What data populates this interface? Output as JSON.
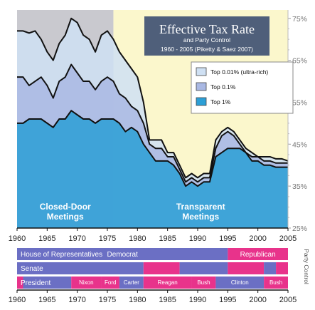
{
  "chart_data": {
    "type": "area",
    "title": "Effective Tax Rate",
    "subtitle": "and Party Control",
    "source": "1960 - 2005 (Piketty & Saez 2007)",
    "x": [
      1960,
      1961,
      1962,
      1963,
      1964,
      1965,
      1966,
      1967,
      1968,
      1969,
      1970,
      1971,
      1972,
      1973,
      1974,
      1975,
      1976,
      1977,
      1978,
      1979,
      1980,
      1981,
      1982,
      1983,
      1984,
      1985,
      1986,
      1987,
      1988,
      1989,
      1990,
      1991,
      1992,
      1993,
      1994,
      1995,
      1996,
      1997,
      1998,
      1999,
      2000,
      2001,
      2002,
      2003,
      2004,
      2005
    ],
    "series": [
      {
        "name": "Top 0.01% (ultra-rich)",
        "color": "#cfe0f3",
        "values": [
          72,
          72,
          71.5,
          72,
          70,
          67,
          65,
          69,
          71,
          75,
          74,
          71,
          70,
          67,
          71,
          72,
          70,
          67,
          65,
          63,
          61,
          55,
          46,
          46,
          46,
          43,
          43,
          40,
          37,
          38,
          37,
          38,
          38,
          46,
          48,
          49,
          48,
          46,
          44,
          43,
          42,
          42,
          42,
          41.5,
          41.5,
          41
        ]
      },
      {
        "name": "Top 0.1%",
        "color": "#a9b8e3",
        "values": [
          61,
          61,
          59,
          60,
          61,
          59,
          56,
          60,
          61,
          64,
          62,
          60,
          60,
          58,
          60,
          61,
          60,
          57,
          56,
          54,
          53,
          50,
          45,
          44,
          44,
          42,
          42,
          39,
          36,
          37,
          36,
          37,
          37,
          44,
          47,
          48,
          47,
          45,
          43,
          42,
          42,
          41,
          41,
          40.5,
          40.5,
          40.5
        ]
      },
      {
        "name": "Top 1%",
        "color": "#2c9fd6",
        "values": [
          50,
          50,
          51,
          51,
          51,
          50,
          49,
          51,
          51,
          53,
          52,
          51,
          51,
          50,
          51,
          51,
          51,
          50,
          48,
          49,
          48,
          45,
          43,
          41,
          41,
          41,
          40,
          38,
          35,
          36,
          35,
          36,
          36,
          42,
          43,
          44,
          44,
          44,
          43,
          41,
          41,
          40,
          40,
          39.5,
          39.5,
          39.5
        ]
      }
    ],
    "xlim": [
      1960,
      2005
    ],
    "ylim": [
      25,
      77
    ],
    "y_ticks": [
      "25%",
      "35%",
      "45%",
      "55%",
      "65%",
      "75%"
    ],
    "y_tick_values": [
      25,
      35,
      45,
      55,
      65,
      75
    ],
    "x_ticks": [
      "1960",
      "1965",
      "1970",
      "1975",
      "1980",
      "1985",
      "1990",
      "1995",
      "2000",
      "2005"
    ],
    "x_tick_values": [
      1960,
      1965,
      1970,
      1975,
      1980,
      1985,
      1990,
      1995,
      2000,
      2005
    ],
    "regions": [
      {
        "label_line1": "Closed-Door",
        "label_line2": "Meetings",
        "from": 1960,
        "to": 1976,
        "color": "#c9c9cf"
      },
      {
        "label_line1": "Transparent",
        "label_line2": "Meetings",
        "from": 1976,
        "to": 2005,
        "color": "#fbf7cc"
      }
    ],
    "legend_position": "upper-right",
    "grid": false
  },
  "party_control": {
    "side_label": "Party Control",
    "colors": {
      "democrat": "#6b6fc4",
      "republican": "#e8338b"
    },
    "rows": [
      {
        "label": "House of Representatives",
        "segments": [
          {
            "from": 1960,
            "to": 1995,
            "party": "democrat",
            "label": "Democrat"
          },
          {
            "from": 1995,
            "to": 2005,
            "party": "republican",
            "label": "Republican"
          }
        ]
      },
      {
        "label": "Senate",
        "segments": [
          {
            "from": 1960,
            "to": 1981,
            "party": "democrat",
            "label": ""
          },
          {
            "from": 1981,
            "to": 1987,
            "party": "republican",
            "label": ""
          },
          {
            "from": 1987,
            "to": 1995,
            "party": "democrat",
            "label": ""
          },
          {
            "from": 1995,
            "to": 2001,
            "party": "republican",
            "label": ""
          },
          {
            "from": 2001,
            "to": 2003,
            "party": "democrat",
            "label": ""
          },
          {
            "from": 2003,
            "to": 2005,
            "party": "republican",
            "label": ""
          }
        ]
      },
      {
        "label": "President",
        "segments": [
          {
            "from": 1960,
            "to": 1961,
            "party": "republican",
            "label": ""
          },
          {
            "from": 1961,
            "to": 1969,
            "party": "democrat",
            "label": ""
          },
          {
            "from": 1969,
            "to": 1974,
            "party": "republican",
            "label": "Nixon"
          },
          {
            "from": 1974,
            "to": 1977,
            "party": "republican",
            "label": "Ford"
          },
          {
            "from": 1977,
            "to": 1981,
            "party": "democrat",
            "label": "Carter"
          },
          {
            "from": 1981,
            "to": 1989,
            "party": "republican",
            "label": "Reagan"
          },
          {
            "from": 1989,
            "to": 1993,
            "party": "republican",
            "label": "Bush"
          },
          {
            "from": 1993,
            "to": 2001,
            "party": "democrat",
            "label": "Clinton"
          },
          {
            "from": 2001,
            "to": 2005,
            "party": "republican",
            "label": "Bush"
          }
        ]
      }
    ]
  }
}
